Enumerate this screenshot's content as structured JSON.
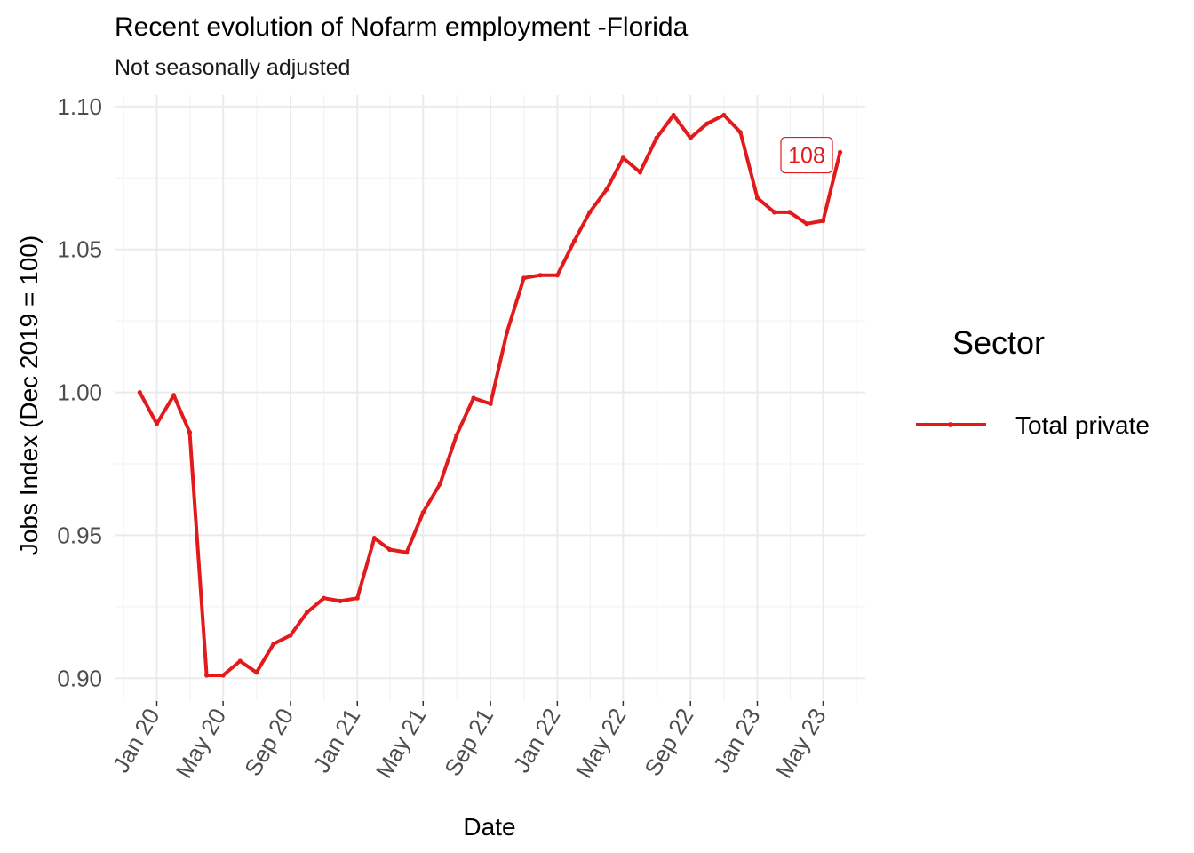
{
  "chart_data": {
    "type": "line",
    "title": "Recent evolution of Nofarm employment -Florida",
    "subtitle": "Not seasonally adjusted",
    "xlabel": "Date",
    "ylabel": "Jobs Index (Dec 2019 = 100)",
    "ylim": [
      0.892,
      1.104
    ],
    "yticks": [
      "0.90",
      "0.95",
      "1.00",
      "1.05",
      "1.10"
    ],
    "ytick_values": [
      0.9,
      0.95,
      1.0,
      1.05,
      1.1
    ],
    "xticks": [
      "Jan 20",
      "May 20",
      "Sep 20",
      "Jan 21",
      "May 21",
      "Sep 21",
      "Jan 22",
      "May 22",
      "Sep 22",
      "Jan 23",
      "May 23"
    ],
    "xtick_dates": [
      "2020-01",
      "2020-05",
      "2020-09",
      "2021-01",
      "2021-05",
      "2021-09",
      "2022-01",
      "2022-05",
      "2022-09",
      "2023-01",
      "2023-05"
    ],
    "xlim": [
      "2019-10-16",
      "2023-07-17"
    ],
    "grid": true,
    "legend": {
      "title": "Sector",
      "position": "right"
    },
    "x": [
      "2019-12",
      "2020-01",
      "2020-02",
      "2020-03",
      "2020-04",
      "2020-05",
      "2020-06",
      "2020-07",
      "2020-08",
      "2020-09",
      "2020-10",
      "2020-11",
      "2020-12",
      "2021-01",
      "2021-02",
      "2021-03",
      "2021-04",
      "2021-05",
      "2021-06",
      "2021-07",
      "2021-08",
      "2021-09",
      "2021-10",
      "2021-11",
      "2021-12",
      "2022-01",
      "2022-02",
      "2022-03",
      "2022-04",
      "2022-05",
      "2022-06",
      "2022-07",
      "2022-08",
      "2022-09",
      "2022-10",
      "2022-11",
      "2022-12",
      "2023-01",
      "2023-02",
      "2023-03",
      "2023-04",
      "2023-05",
      "2023-06"
    ],
    "series": [
      {
        "name": "Total private",
        "color": "#e31a1c",
        "values": [
          1.0,
          0.989,
          0.999,
          0.986,
          0.901,
          0.901,
          0.906,
          0.902,
          0.912,
          0.915,
          0.923,
          0.928,
          0.927,
          0.928,
          0.949,
          0.945,
          0.944,
          0.958,
          0.968,
          0.985,
          0.998,
          0.996,
          1.021,
          1.04,
          1.041,
          1.041,
          1.053,
          1.063,
          1.071,
          1.082,
          1.077,
          1.089,
          1.097,
          1.089,
          1.094,
          1.097,
          1.091,
          1.068,
          1.063,
          1.063,
          1.059,
          1.06,
          1.084
        ]
      }
    ],
    "annotations": [
      {
        "text": "108",
        "x": "2023-04",
        "y": 1.083,
        "color": "#e31a1c"
      }
    ]
  }
}
